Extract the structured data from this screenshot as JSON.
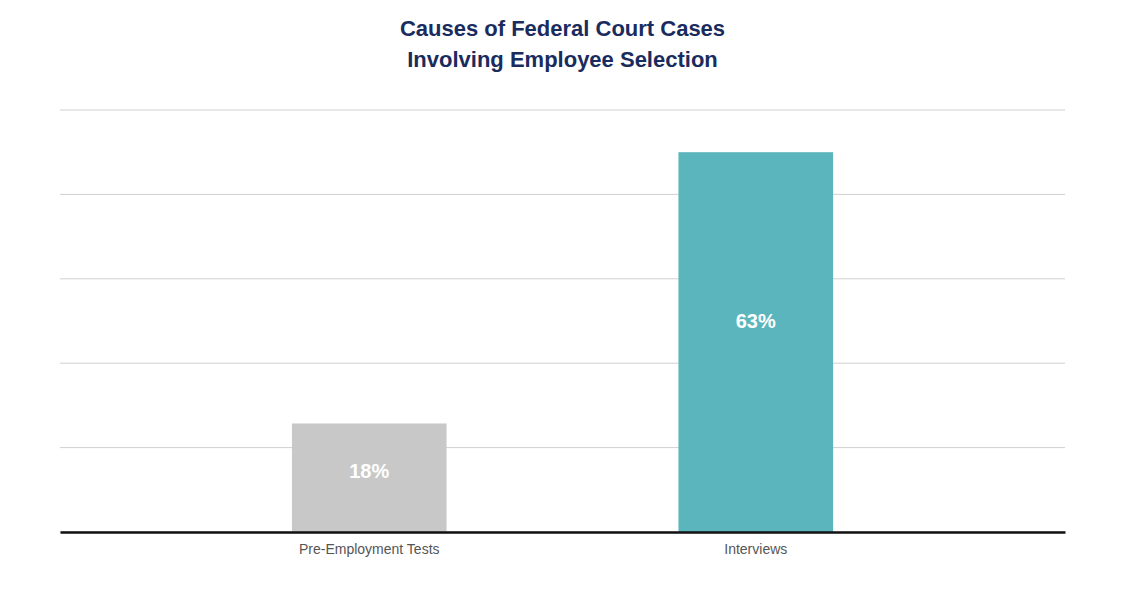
{
  "chart_data": {
    "type": "bar",
    "title": "Causes of Federal Court Cases\nInvolving Employee Selection",
    "categories": [
      "Pre-Employment Tests",
      "Interviews"
    ],
    "values": [
      18,
      63
    ],
    "value_labels": [
      "18%",
      "63%"
    ],
    "colors": [
      "#c8c8c8",
      "#5ab5bc"
    ],
    "ylim": [
      0,
      70
    ],
    "yticks": [
      0,
      14,
      28,
      42,
      56,
      70
    ],
    "grid": true,
    "data_labels": true,
    "tick_labels": "x"
  }
}
